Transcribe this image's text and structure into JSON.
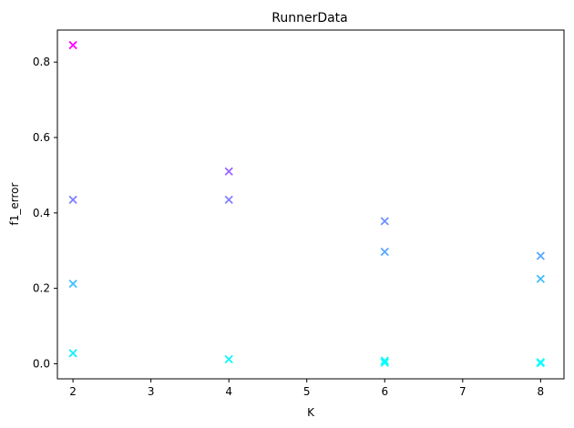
{
  "chart_data": {
    "type": "scatter",
    "title": "RunnerData",
    "xlabel": "K",
    "ylabel": "f1_error",
    "xlim": [
      1.8,
      8.3
    ],
    "ylim": [
      -0.04,
      0.885
    ],
    "x_ticks": [
      2,
      3,
      4,
      5,
      6,
      7,
      8
    ],
    "y_ticks": [
      0.0,
      0.2,
      0.4,
      0.6,
      0.8
    ],
    "marker": "x",
    "colormap": "cool",
    "grid": false,
    "points": [
      {
        "x": 2,
        "y": 0.845,
        "color": "#ff00ff"
      },
      {
        "x": 2,
        "y": 0.435,
        "color": "#8080ff"
      },
      {
        "x": 2,
        "y": 0.212,
        "color": "#40c0ff"
      },
      {
        "x": 2,
        "y": 0.028,
        "color": "#10efff"
      },
      {
        "x": 4,
        "y": 0.51,
        "color": "#9966ff"
      },
      {
        "x": 4,
        "y": 0.435,
        "color": "#8080ff"
      },
      {
        "x": 4,
        "y": 0.012,
        "color": "#08f7ff"
      },
      {
        "x": 6,
        "y": 0.378,
        "color": "#7090ff"
      },
      {
        "x": 6,
        "y": 0.297,
        "color": "#58a8ff"
      },
      {
        "x": 6,
        "y": 0.008,
        "color": "#04fbff"
      },
      {
        "x": 6,
        "y": 0.003,
        "color": "#00ffff"
      },
      {
        "x": 8,
        "y": 0.286,
        "color": "#58a8ff"
      },
      {
        "x": 8,
        "y": 0.225,
        "color": "#44bcff"
      },
      {
        "x": 8,
        "y": 0.004,
        "color": "#00ffff"
      },
      {
        "x": 8,
        "y": 0.002,
        "color": "#00ffff"
      }
    ]
  }
}
